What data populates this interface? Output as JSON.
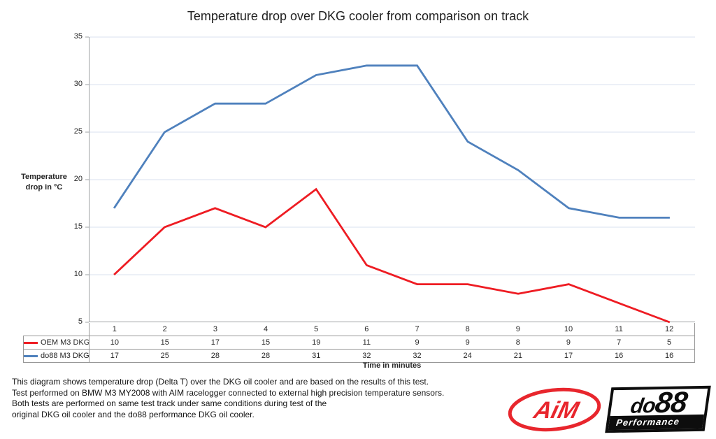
{
  "title": "Temperature drop over DKG cooler from comparison on track",
  "chart_data": {
    "type": "line",
    "title": "Temperature drop over DKG cooler from comparison on track",
    "ylabel_lines": [
      "Temperature",
      "drop in °C"
    ],
    "xlabel": "Time in minutes",
    "categories": [
      1,
      2,
      3,
      4,
      5,
      6,
      7,
      8,
      9,
      10,
      11,
      12
    ],
    "series": [
      {
        "name": "OEM M3 DKG",
        "color": "#EE1C23",
        "values": [
          10,
          15,
          17,
          15,
          19,
          11,
          9,
          9,
          8,
          9,
          7,
          5
        ]
      },
      {
        "name": "do88 M3 DKG",
        "color": "#4F81BD",
        "values": [
          17,
          25,
          28,
          28,
          31,
          32,
          32,
          24,
          21,
          17,
          16,
          16
        ]
      }
    ],
    "ylim": [
      5,
      35
    ],
    "yticks": [
      35,
      30,
      25,
      20,
      15,
      10,
      5
    ],
    "grid": "horizontal",
    "grid_color": "#D8E2EF",
    "axis_color": "#9DA0A3",
    "legend_position": "data-table-left"
  },
  "footer": {
    "lines": [
      "This diagram shows temperature drop (Delta T) over the DKG oil cooler and are based on the results of this test.",
      "Test performed on BMW M3 MY2008 with AIM racelogger connected to external high precision temperature sensors.",
      "Both tests are performed on same test track under same conditions during test of the",
      "original DKG oil cooler and the do88 performance DKG oil cooler."
    ]
  },
  "logos": {
    "aim": {
      "text": "AiM",
      "color": "#E8262D"
    },
    "do88": {
      "brand_prefix": "do",
      "brand_suffix": "88",
      "tagline": "Performance",
      "color": "#0d0d0d"
    }
  }
}
